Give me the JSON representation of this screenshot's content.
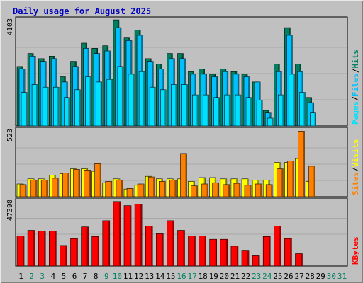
{
  "title": "Daily usage for August 2025",
  "colors": {
    "frame_bg": "#c0c0c0",
    "plot_bg": "#c0c0c0",
    "title": "#0000c0",
    "hits": "#008060",
    "files": "#00c0ff",
    "pages": "#00e0ff",
    "visits": "#ffff00",
    "sites": "#ff8000",
    "kbytes": "#ff0000",
    "weekday_label": "#000000",
    "weekend_label": "#008060"
  },
  "chart_data": [
    {
      "type": "bar",
      "panel": "top",
      "categories": [
        "1",
        "2",
        "3",
        "4",
        "5",
        "6",
        "7",
        "8",
        "9",
        "10",
        "11",
        "12",
        "13",
        "14",
        "15",
        "16",
        "17",
        "18",
        "19",
        "20",
        "21",
        "22",
        "23",
        "24",
        "25",
        "26",
        "27",
        "28",
        "29",
        "30",
        "31"
      ],
      "ymax_label": "4103",
      "ylim": [
        0,
        4103
      ],
      "right_label_parts": [
        {
          "text": "Hits",
          "color_key": "hits"
        },
        {
          "text": "/",
          "color_key": "weekday_label"
        },
        {
          "text": "Files",
          "color_key": "files"
        },
        {
          "text": "/",
          "color_key": "weekday_label"
        },
        {
          "text": "Pages",
          "color_key": "pages"
        }
      ],
      "series": [
        {
          "name": "Hits",
          "color_key": "hits",
          "values": [
            2300,
            2800,
            2600,
            2700,
            1900,
            2500,
            3200,
            3000,
            3100,
            4100,
            3400,
            3700,
            2600,
            2400,
            2800,
            2800,
            2100,
            2200,
            2000,
            2200,
            2100,
            2000,
            1700,
            600,
            2400,
            3800,
            2400,
            1100,
            0,
            0,
            0
          ]
        },
        {
          "name": "Files",
          "color_key": "files",
          "values": [
            2200,
            2700,
            2500,
            2600,
            1700,
            2300,
            3000,
            2800,
            2900,
            3800,
            3300,
            3500,
            2500,
            2200,
            2600,
            2600,
            2000,
            2000,
            1900,
            2100,
            2000,
            1900,
            1700,
            500,
            2100,
            3500,
            2100,
            900,
            0,
            0,
            0
          ]
        },
        {
          "name": "Pages",
          "color_key": "pages",
          "values": [
            1300,
            1600,
            1500,
            1500,
            1100,
            1400,
            1900,
            1700,
            1800,
            2300,
            2000,
            2100,
            1500,
            1400,
            1600,
            1600,
            1200,
            1200,
            1100,
            1200,
            1200,
            1100,
            1000,
            300,
            1200,
            2000,
            1300,
            500,
            0,
            0,
            0
          ]
        }
      ]
    },
    {
      "type": "bar",
      "panel": "middle",
      "ymax_label": "523",
      "ylim": [
        0,
        523
      ],
      "right_label_parts": [
        {
          "text": "Visits",
          "color_key": "visits"
        },
        {
          "text": "/",
          "color_key": "weekday_label"
        },
        {
          "text": "Sites",
          "color_key": "sites"
        }
      ],
      "series": [
        {
          "name": "Visits",
          "color_key": "visits",
          "values": [
            100,
            140,
            140,
            170,
            180,
            220,
            220,
            200,
            110,
            140,
            60,
            90,
            160,
            140,
            140,
            140,
            120,
            150,
            150,
            140,
            140,
            140,
            130,
            130,
            270,
            270,
            300,
            120,
            0,
            0,
            0
          ]
        },
        {
          "name": "Sites",
          "color_key": "sites",
          "values": [
            95,
            130,
            130,
            145,
            185,
            215,
            210,
            260,
            120,
            130,
            65,
            100,
            155,
            120,
            130,
            340,
            85,
            100,
            110,
            95,
            105,
            90,
            100,
            95,
            220,
            280,
            515,
            240,
            0,
            0,
            0
          ]
        }
      ]
    },
    {
      "type": "bar",
      "panel": "bottom",
      "ymax_label": "47398",
      "ylim": [
        0,
        47398
      ],
      "right_label_parts": [
        {
          "text": "KBytes",
          "color_key": "kbytes"
        }
      ],
      "series": [
        {
          "name": "KBytes",
          "color_key": "kbytes",
          "values": [
            22000,
            26000,
            25500,
            25500,
            15000,
            20000,
            28500,
            21500,
            33000,
            47000,
            44000,
            45000,
            29000,
            23500,
            33000,
            26000,
            22000,
            22000,
            19500,
            19500,
            14500,
            11000,
            7500,
            21500,
            29000,
            20000,
            9000,
            0,
            0,
            0,
            0
          ]
        }
      ]
    }
  ],
  "xaxis_days": [
    {
      "label": "1",
      "weekend": false
    },
    {
      "label": "2",
      "weekend": true
    },
    {
      "label": "3",
      "weekend": true
    },
    {
      "label": "4",
      "weekend": false
    },
    {
      "label": "5",
      "weekend": false
    },
    {
      "label": "6",
      "weekend": false
    },
    {
      "label": "7",
      "weekend": false
    },
    {
      "label": "8",
      "weekend": false
    },
    {
      "label": "9",
      "weekend": true
    },
    {
      "label": "10",
      "weekend": true
    },
    {
      "label": "11",
      "weekend": false
    },
    {
      "label": "12",
      "weekend": false
    },
    {
      "label": "13",
      "weekend": false
    },
    {
      "label": "14",
      "weekend": false
    },
    {
      "label": "15",
      "weekend": false
    },
    {
      "label": "16",
      "weekend": true
    },
    {
      "label": "17",
      "weekend": true
    },
    {
      "label": "18",
      "weekend": false
    },
    {
      "label": "19",
      "weekend": false
    },
    {
      "label": "20",
      "weekend": false
    },
    {
      "label": "21",
      "weekend": false
    },
    {
      "label": "22",
      "weekend": false
    },
    {
      "label": "23",
      "weekend": true
    },
    {
      "label": "24",
      "weekend": true
    },
    {
      "label": "25",
      "weekend": false
    },
    {
      "label": "26",
      "weekend": false
    },
    {
      "label": "27",
      "weekend": false
    },
    {
      "label": "28",
      "weekend": false
    },
    {
      "label": "29",
      "weekend": false
    },
    {
      "label": "30",
      "weekend": true
    },
    {
      "label": "31",
      "weekend": true
    }
  ]
}
